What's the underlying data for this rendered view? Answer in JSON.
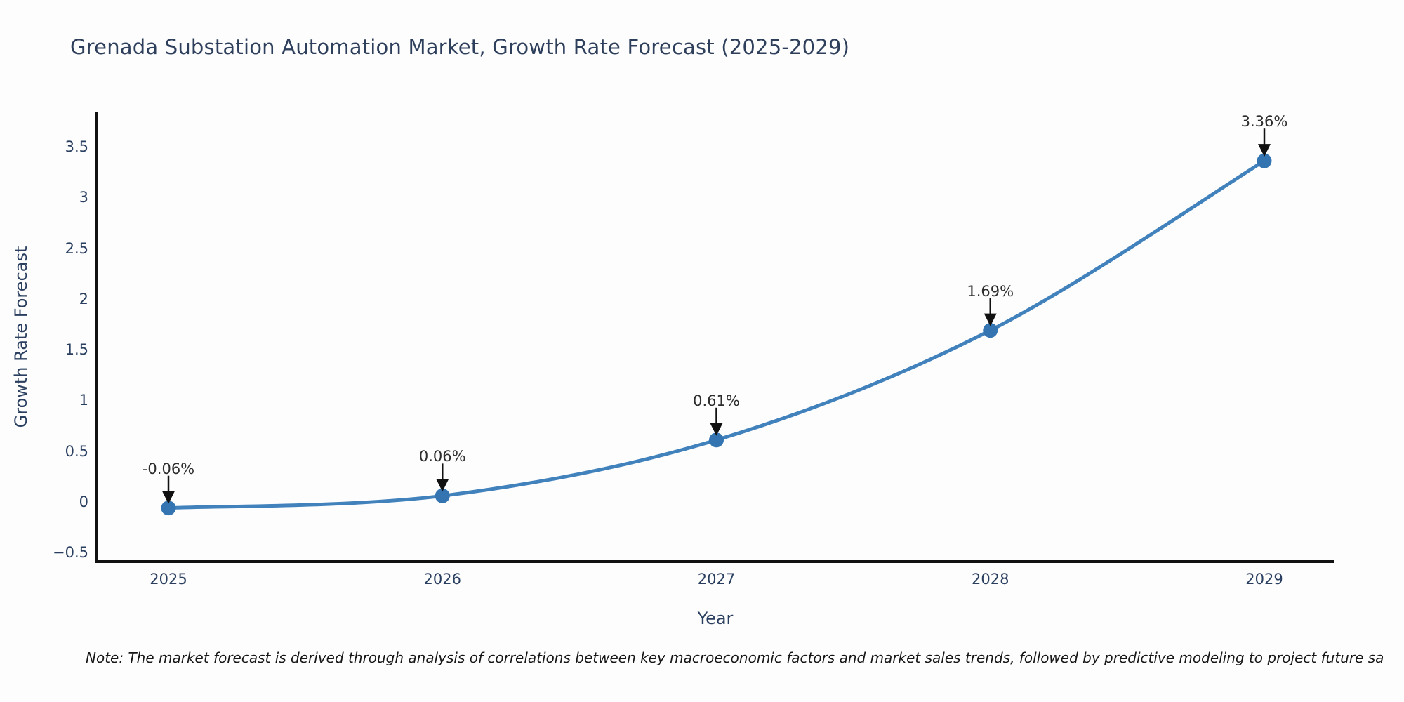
{
  "header": {
    "title": "Grenada Substation Automation Market, Growth Rate Forecast (2025-2029)"
  },
  "chart_data": {
    "type": "line",
    "title": "Grenada Substation Automation Market, Growth Rate Forecast (2025-2029)",
    "x": [
      2025,
      2026,
      2027,
      2028,
      2029
    ],
    "categories": [
      "2025",
      "2026",
      "2027",
      "2028",
      "2029"
    ],
    "values": [
      -0.06,
      0.06,
      0.61,
      1.69,
      3.36
    ],
    "point_labels": [
      "-0.06%",
      "0.06%",
      "0.61%",
      "1.69%",
      "3.36%"
    ],
    "xlabel": "Year",
    "ylabel": "Growth Rate Forecast",
    "ylim": [
      -0.59,
      3.84
    ],
    "xlim": [
      2024.74,
      2029.25
    ],
    "yticks": {
      "values": [
        3.5,
        3,
        2.5,
        2,
        1.5,
        1,
        0.5,
        0,
        -0.5
      ],
      "labels": [
        "3.5",
        "3",
        "2.5",
        "2",
        "1.5",
        "1",
        "0.5",
        "0",
        "−0.5"
      ]
    },
    "grid": false,
    "legend": "none",
    "line_color": "#4182bc",
    "marker_color": "#3374b1",
    "arrow_color": "#111111",
    "axis_color": "#111111",
    "tick_color": "#2a3f5f",
    "annotation_color": "#2d2d2d"
  },
  "note": {
    "text": "Note: The market forecast is derived through analysis of correlations between key macroeconomic factors and market sales trends, followed by predictive modeling to project future sa"
  }
}
